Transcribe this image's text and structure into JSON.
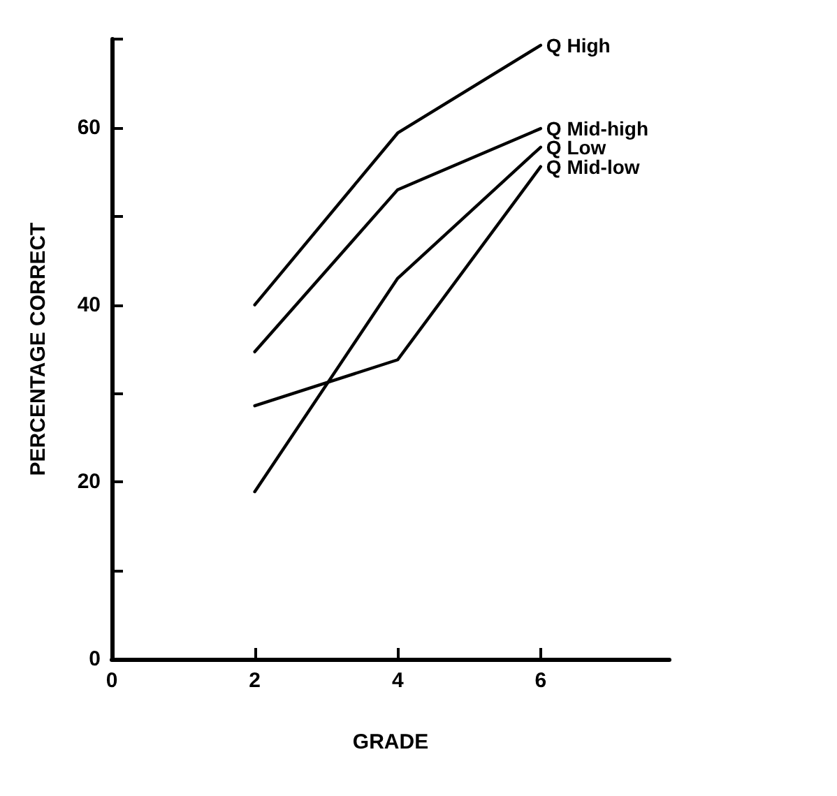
{
  "chart_data": {
    "type": "line",
    "xlabel": "GRADE",
    "ylabel": "PERCENTAGE CORRECT",
    "x": [
      2,
      4,
      6
    ],
    "series": [
      {
        "name": "Q High",
        "color": "#000000",
        "values": [
          40.0,
          59.4,
          69.3
        ]
      },
      {
        "name": "Q Mid-high",
        "color": "#000000",
        "values": [
          34.7,
          53.0,
          59.9
        ]
      },
      {
        "name": "Q Low",
        "color": "#000000",
        "values": [
          18.9,
          43.0,
          57.8
        ]
      },
      {
        "name": "Q Mid-low",
        "color": "#000000",
        "values": [
          28.6,
          33.8,
          55.6
        ]
      }
    ],
    "xlim": [
      0,
      7.8
    ],
    "xticks": [
      0,
      2,
      4,
      6
    ],
    "ylim": [
      0,
      70
    ],
    "yticks": [
      0,
      {
        "value": 10,
        "label": null
      },
      20,
      {
        "value": 30,
        "label": null
      },
      40,
      {
        "value": 50,
        "label": null
      },
      60,
      {
        "value": 70,
        "label": null
      }
    ],
    "grid": false,
    "legend": false,
    "marker": "none",
    "line_style": "solid"
  }
}
